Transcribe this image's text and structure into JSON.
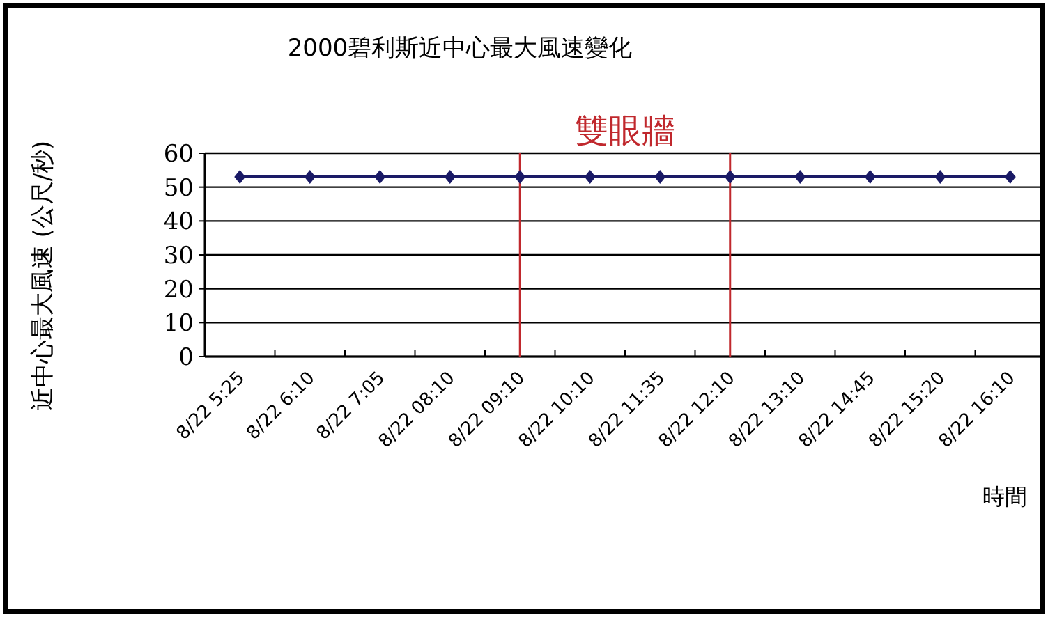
{
  "chart_data": {
    "type": "line",
    "title": "2000碧利斯近中心最大風速變化",
    "xlabel": "時間",
    "ylabel": "近中心最大風速 (公尺/秒)",
    "categories": [
      "8/22 5:25",
      "8/22 6:10",
      "8/22 7:05",
      "8/22 08:10",
      "8/22 09:10",
      "8/22 10:10",
      "8/22 11:35",
      "8/22 12:10",
      "8/22 13:10",
      "8/22 14:45",
      "8/22 15:20",
      "8/22 16:10"
    ],
    "series": [
      {
        "color": "#1a1a66",
        "values": [
          53,
          53,
          53,
          53,
          53,
          53,
          53,
          53,
          53,
          53,
          53,
          53
        ]
      }
    ],
    "ylim": [
      0,
      60
    ],
    "yticks": [
      0,
      10,
      20,
      30,
      40,
      50,
      60
    ],
    "grid": "y",
    "marker": "diamond",
    "line_style": "solid",
    "annotations": [
      "雙眼牆"
    ],
    "ref_lines": [
      {
        "axis": "x",
        "value": "8/22 09:10",
        "color": "#c0282d"
      },
      {
        "axis": "x",
        "value": "8/22 12:10",
        "color": "#c0282d"
      }
    ]
  }
}
